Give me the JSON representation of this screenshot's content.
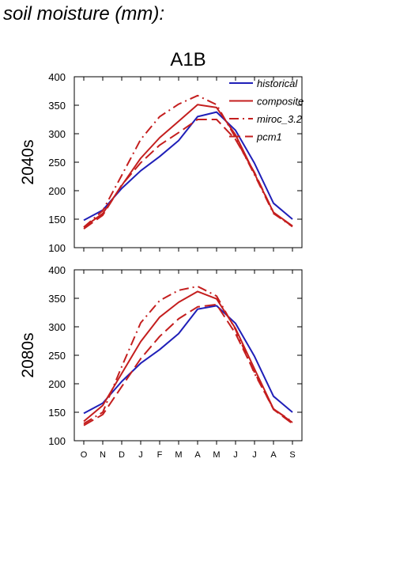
{
  "figure": {
    "title": "soil moisture (mm):"
  },
  "colors": {
    "historical": "#1f1fb8",
    "model": "#c41e1e"
  },
  "chart_data": [
    {
      "type": "line",
      "title": "A1B",
      "ylabel": "2040s",
      "categories": [
        "O",
        "N",
        "D",
        "J",
        "F",
        "M",
        "A",
        "M",
        "J",
        "J",
        "A",
        "S"
      ],
      "ylim": [
        100,
        400
      ],
      "yticks": [
        100,
        150,
        200,
        250,
        300,
        350,
        400
      ],
      "grid": false,
      "legend": "top-right",
      "series": [
        {
          "name": "historical",
          "style": "solid",
          "color": "#1f1fb8",
          "values": [
            148,
            166,
            204,
            235,
            260,
            288,
            330,
            338,
            306,
            248,
            178,
            150
          ]
        },
        {
          "name": "composite",
          "style": "solid",
          "color": "#c41e1e",
          "values": [
            136,
            160,
            209,
            257,
            293,
            322,
            351,
            346,
            298,
            230,
            162,
            138
          ]
        },
        {
          "name": "miroc_3.2",
          "style": "dashdot",
          "color": "#c41e1e",
          "values": [
            136,
            165,
            227,
            290,
            330,
            352,
            367,
            351,
            293,
            228,
            160,
            137
          ]
        },
        {
          "name": "pcm1",
          "style": "dashed",
          "color": "#c41e1e",
          "values": [
            133,
            157,
            210,
            249,
            280,
            302,
            325,
            325,
            290,
            232,
            162,
            137
          ]
        }
      ]
    },
    {
      "type": "line",
      "title": "",
      "ylabel": "2080s",
      "categories": [
        "O",
        "N",
        "D",
        "J",
        "F",
        "M",
        "A",
        "M",
        "J",
        "J",
        "A",
        "S"
      ],
      "ylim": [
        100,
        400
      ],
      "yticks": [
        100,
        150,
        200,
        250,
        300,
        350,
        400
      ],
      "grid": false,
      "legend": "",
      "series": [
        {
          "name": "historical",
          "style": "solid",
          "color": "#1f1fb8",
          "values": [
            148,
            166,
            204,
            236,
            260,
            288,
            331,
            337,
            306,
            248,
            178,
            150
          ]
        },
        {
          "name": "composite",
          "style": "solid",
          "color": "#c41e1e",
          "values": [
            134,
            162,
            218,
            274,
            317,
            343,
            362,
            349,
            297,
            226,
            156,
            132
          ]
        },
        {
          "name": "miroc_3.2",
          "style": "dashdot",
          "color": "#c41e1e",
          "values": [
            130,
            150,
            230,
            307,
            346,
            364,
            371,
            354,
            295,
            218,
            156,
            133
          ]
        },
        {
          "name": "pcm1",
          "style": "dashed",
          "color": "#c41e1e",
          "values": [
            127,
            146,
            195,
            244,
            283,
            314,
            335,
            339,
            288,
            220,
            155,
            130
          ]
        }
      ]
    }
  ]
}
